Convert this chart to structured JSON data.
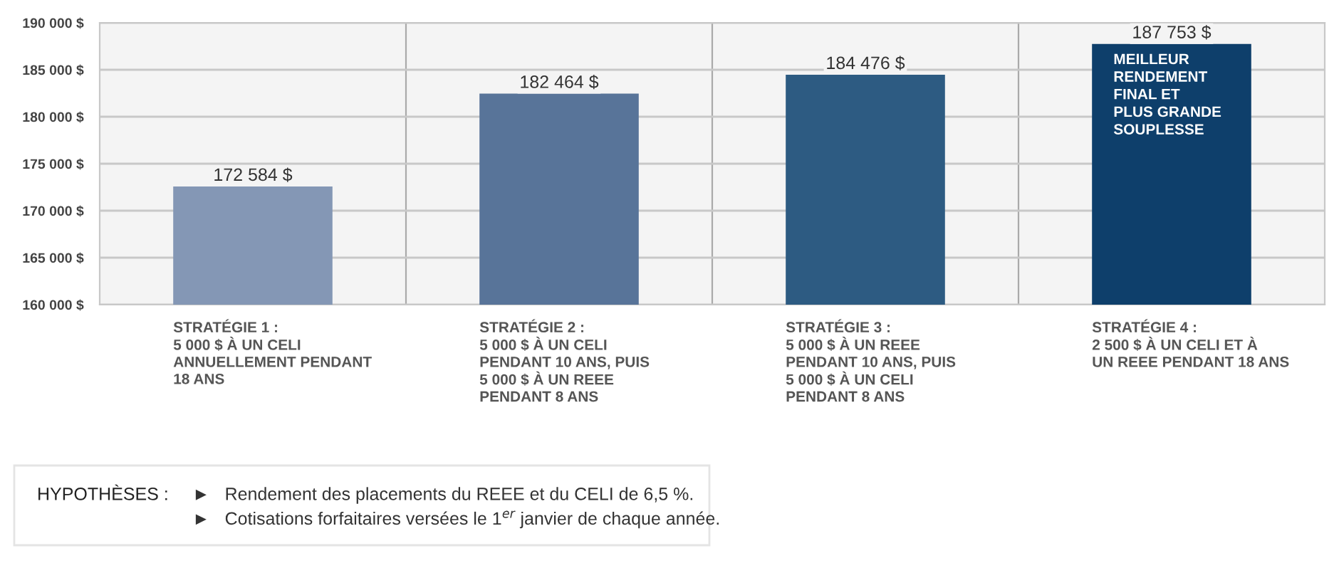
{
  "chart_data": {
    "type": "bar",
    "categories": [
      "STRATÉGIE 1 :\n5 000 $ À UN CELI\nANNUELLEMENT PENDANT\n18 ANS",
      "STRATÉGIE 2 :\n5 000 $ À UN CELI\nPENDANT 10 ANS, PUIS\n5 000 $ À UN REEE\nPENDANT 8 ANS",
      "STRATÉGIE 3 :\n5 000 $ À UN REEE\nPENDANT 10 ANS, PUIS\n5 000 $ À UN CELI\nPENDANT 8 ANS",
      "STRATÉGIE 4 :\n2 500 $ À UN CELI ET À\nUN REEE PENDANT 18 ANS"
    ],
    "values": [
      172584,
      182464,
      184476,
      187753
    ],
    "colors": [
      "#8497b5",
      "#587499",
      "#2d5b82",
      "#0e3f6b"
    ],
    "value_labels": [
      "172 584 $",
      "182 464 $",
      "184 476 $",
      "187 753 $"
    ],
    "ylim": [
      160000,
      190000
    ],
    "yticks": [
      {
        "value": 160000,
        "label": "160 000 $"
      },
      {
        "value": 165000,
        "label": "165 000 $"
      },
      {
        "value": 170000,
        "label": "170 000 $"
      },
      {
        "value": 175000,
        "label": "175 000 $"
      },
      {
        "value": 180000,
        "label": "180 000 $"
      },
      {
        "value": 185000,
        "label": "185 000 $"
      },
      {
        "value": 190000,
        "label": "190 000 $"
      }
    ],
    "grid": true,
    "annotations": [
      "MEILLEUR\nRENDEMENT\nFINAL ET\nPLUS GRANDE\nSOUPLESSE",
      "HYPOTHÈSES :",
      "►   Rendement des placements du REEE et du CELI de 6,5 %.",
      "►   Cotisations forfaitaires versées le 1$^{er}$ janvier de chaque année."
    ]
  }
}
